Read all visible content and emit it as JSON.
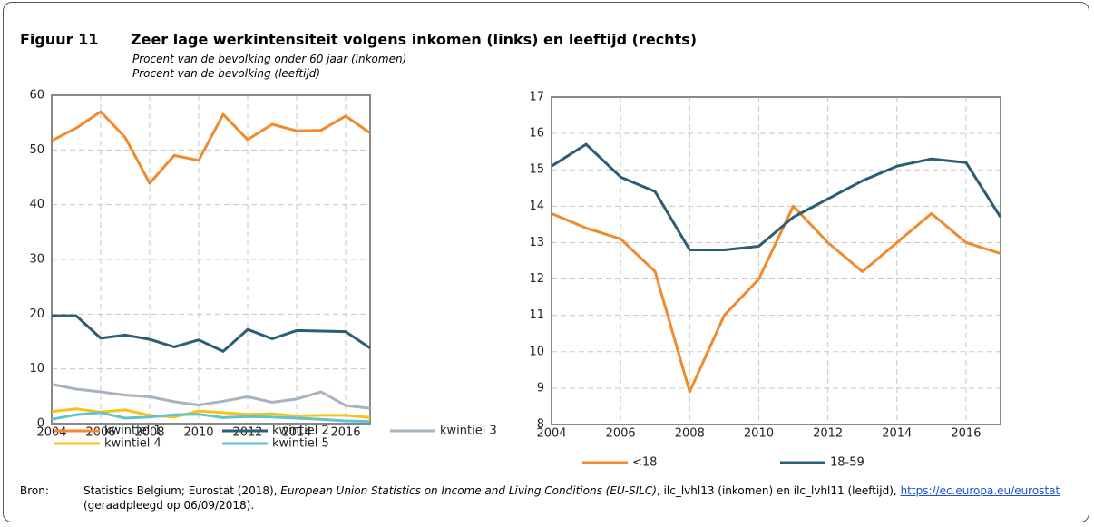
{
  "header": {
    "label": "Figuur 11",
    "title": "Zeer lage werkintensiteit volgens inkomen (links) en leeftijd (rechts)"
  },
  "chart_data": [
    {
      "type": "line",
      "subtitle": "Procent van de bevolking onder 60 jaar (inkomen)",
      "x": [
        2004,
        2005,
        2006,
        2007,
        2008,
        2009,
        2010,
        2011,
        2012,
        2013,
        2014,
        2015,
        2016,
        2017
      ],
      "xlim": [
        2004,
        2017
      ],
      "xticks": [
        2004,
        2006,
        2008,
        2010,
        2012,
        2014,
        2016
      ],
      "ylim": [
        0,
        60
      ],
      "yticks": [
        0,
        10,
        20,
        30,
        40,
        50,
        60
      ],
      "grid": true,
      "series": [
        {
          "name": "kwintiel 1",
          "color": "#f08a2c",
          "values": [
            51.7,
            54,
            57,
            52.3,
            43.9,
            49,
            48.1,
            56.5,
            51.9,
            54.7,
            53.5,
            53.6,
            56.2,
            53.1
          ]
        },
        {
          "name": "kwintiel 2",
          "color": "#2b5e74",
          "values": [
            19.7,
            19.7,
            15.6,
            16.2,
            15.4,
            14,
            15.3,
            13.2,
            17.2,
            15.5,
            17,
            16.9,
            16.8,
            13.8
          ]
        },
        {
          "name": "kwintiel 3",
          "color": "#a7b3bf",
          "values": [
            7.2,
            6.3,
            5.8,
            5.2,
            4.9,
            4,
            3.4,
            4.1,
            4.9,
            3.9,
            4.5,
            5.8,
            3.3,
            2.8
          ]
        },
        {
          "name": "kwintiel 4",
          "color": "#f7c21b",
          "values": [
            2.2,
            2.7,
            2.1,
            2.5,
            1.5,
            1.2,
            2.3,
            2.0,
            1.7,
            1.8,
            1.4,
            1.5,
            1.5,
            1.1
          ]
        },
        {
          "name": "kwintiel 5",
          "color": "#5ec4d0",
          "values": [
            0.8,
            1.6,
            2.0,
            1.0,
            1.2,
            1.6,
            1.7,
            1.1,
            1.3,
            1.2,
            1.0,
            0.8,
            0.5,
            0.4
          ]
        }
      ]
    },
    {
      "type": "line",
      "subtitle": "Procent van de bevolking (leeftijd)",
      "x": [
        2004,
        2005,
        2006,
        2007,
        2008,
        2009,
        2010,
        2011,
        2012,
        2013,
        2014,
        2015,
        2016,
        2017
      ],
      "xlim": [
        2004,
        2017
      ],
      "xticks": [
        2004,
        2006,
        2008,
        2010,
        2012,
        2014,
        2016
      ],
      "ylim": [
        8,
        17
      ],
      "yticks": [
        8,
        9,
        10,
        11,
        12,
        13,
        14,
        15,
        16,
        17
      ],
      "grid": true,
      "series": [
        {
          "name": "<18",
          "color": "#f08a2c",
          "values": [
            13.8,
            13.4,
            13.1,
            12.2,
            8.9,
            11,
            12,
            14,
            13,
            12.2,
            13,
            13.8,
            13,
            12.7
          ]
        },
        {
          "name": "18-59",
          "color": "#2b5e74",
          "values": [
            15.1,
            15.7,
            14.8,
            14.4,
            12.8,
            12.8,
            12.9,
            13.7,
            14.2,
            14.7,
            15.1,
            15.3,
            15.2,
            13.7
          ]
        }
      ]
    }
  ],
  "source": {
    "label": "Bron:",
    "text1": "Statistics Belgium; Eurostat (2018), ",
    "italic": "European Union Statistics on Income and Living Conditions (EU-SILC)",
    "text2": ", ilc_lvhl13 (inkomen) en ilc_lvhl11 (leeftijd), ",
    "link": "https://ec.europa.eu/eurostat",
    "text3": " (geraadpleegd op 06/09/2018)."
  }
}
